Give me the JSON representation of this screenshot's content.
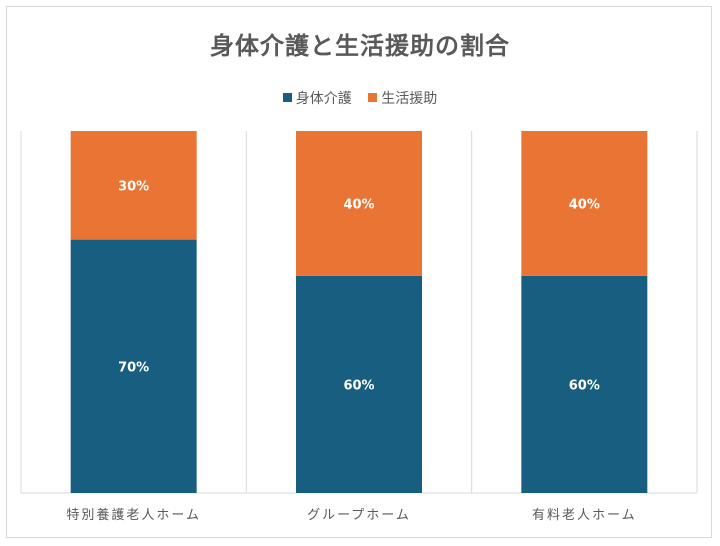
{
  "chart_data": {
    "type": "bar",
    "stacked": true,
    "title": "身体介護と生活援助の割合",
    "categories": [
      "特別養護老人ホーム",
      "グループホーム",
      "有料老人ホーム"
    ],
    "series": [
      {
        "name": "身体介護",
        "values": [
          70,
          60,
          60
        ],
        "labels": [
          "70%",
          "60%",
          "60%"
        ],
        "color": "#175e80"
      },
      {
        "name": "生活援助",
        "values": [
          30,
          40,
          40
        ],
        "labels": [
          "30%",
          "40%",
          "40%"
        ],
        "color": "#ea7434"
      }
    ],
    "ylim": [
      0,
      100
    ],
    "legend": "top",
    "grid": "vertical"
  }
}
